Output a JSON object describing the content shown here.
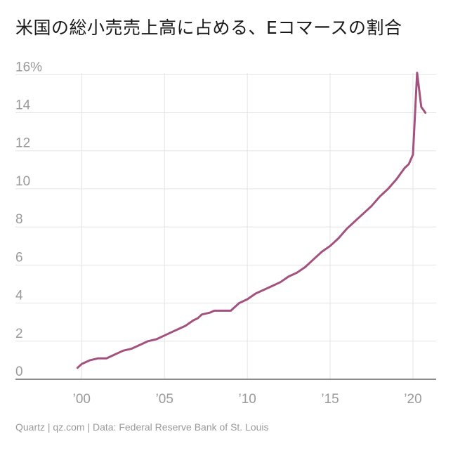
{
  "title": "米国の総小売売上高に占める、Eコマースの割合",
  "source": "Quartz | qz.com | Data: Federal Reserve Bank of St. Louis",
  "chart_data": {
    "type": "line",
    "title": "米国の総小売売上高に占める、Eコマースの割合",
    "xlabel": "",
    "ylabel": "",
    "xlim": [
      1996,
      2021.4
    ],
    "ylim": [
      0,
      16.6
    ],
    "x_ticks": [
      {
        "value": 2000,
        "label": "’00"
      },
      {
        "value": 2005,
        "label": "’05"
      },
      {
        "value": 2010,
        "label": "’10"
      },
      {
        "value": 2015,
        "label": "’15"
      },
      {
        "value": 2020,
        "label": "’20"
      }
    ],
    "y_ticks": [
      {
        "value": 0,
        "label": "0"
      },
      {
        "value": 2,
        "label": "2"
      },
      {
        "value": 4,
        "label": "4"
      },
      {
        "value": 6,
        "label": "6"
      },
      {
        "value": 8,
        "label": "8"
      },
      {
        "value": 10,
        "label": "10"
      },
      {
        "value": 12,
        "label": "12"
      },
      {
        "value": 14,
        "label": "14"
      },
      {
        "value": 16,
        "label": "16%"
      }
    ],
    "grid": true,
    "line_color": "#a3527f",
    "series": [
      {
        "name": "",
        "x": [
          1999.75,
          2000.0,
          2000.5,
          2001.0,
          2001.5,
          2002.0,
          2002.5,
          2003.0,
          2003.5,
          2004.0,
          2004.5,
          2005.0,
          2005.5,
          2006.0,
          2006.25,
          2006.75,
          2007.0,
          2007.25,
          2007.75,
          2008.0,
          2008.5,
          2009.0,
          2009.5,
          2010.0,
          2010.5,
          2011.0,
          2011.5,
          2012.0,
          2012.5,
          2013.0,
          2013.5,
          2014.0,
          2014.5,
          2015.0,
          2015.5,
          2016.0,
          2016.5,
          2017.0,
          2017.5,
          2018.0,
          2018.5,
          2019.0,
          2019.25,
          2019.5,
          2019.75,
          2020.0,
          2020.25,
          2020.5,
          2020.75
        ],
        "values": [
          0.6,
          0.8,
          1.0,
          1.1,
          1.1,
          1.3,
          1.5,
          1.6,
          1.8,
          2.0,
          2.1,
          2.3,
          2.5,
          2.7,
          2.8,
          3.1,
          3.2,
          3.4,
          3.5,
          3.6,
          3.6,
          3.6,
          4.0,
          4.2,
          4.5,
          4.7,
          4.9,
          5.1,
          5.4,
          5.6,
          5.9,
          6.3,
          6.7,
          7.0,
          7.4,
          7.9,
          8.3,
          8.7,
          9.1,
          9.6,
          10.0,
          10.5,
          10.8,
          11.1,
          11.3,
          11.8,
          16.1,
          14.3,
          14.0
        ]
      }
    ]
  }
}
